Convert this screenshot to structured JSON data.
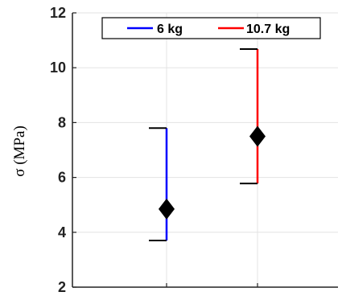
{
  "chart_data": {
    "type": "errorbar",
    "ylabel": "σ (MPa)",
    "ylim": [
      2,
      12
    ],
    "yticks": [
      2,
      4,
      6,
      8,
      10,
      12
    ],
    "grid": true,
    "legend_position": "top",
    "series": [
      {
        "name": "6 kg",
        "color": "#0000ff",
        "mean": 4.85,
        "low": 3.7,
        "high": 7.8
      },
      {
        "name": "10.7 kg",
        "color": "#ff0000",
        "mean": 7.5,
        "low": 5.78,
        "high": 10.68
      }
    ]
  }
}
